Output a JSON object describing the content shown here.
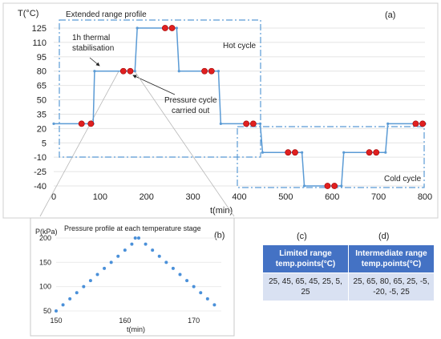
{
  "chart_data": [
    {
      "panel": "(a)",
      "type": "line",
      "title": "Extended range profile",
      "xlabel": "t(min)",
      "ylabel": "T(°C)",
      "xlim": [
        0,
        800
      ],
      "ylim": [
        -40,
        125
      ],
      "xticks": [
        0,
        100,
        200,
        300,
        400,
        500,
        600,
        700,
        800
      ],
      "yticks": [
        125,
        110,
        95,
        80,
        65,
        50,
        35,
        20,
        5,
        -10,
        -25,
        -40
      ],
      "series": [
        {
          "x": [
            0,
            85,
            88,
            175,
            180,
            265,
            270,
            355,
            360,
            445,
            450,
            535,
            540,
            620,
            625,
            715,
            720,
            800
          ],
          "y": [
            25,
            25,
            80,
            80,
            125,
            125,
            80,
            80,
            25,
            25,
            -5,
            -5,
            -40,
            -40,
            -5,
            -5,
            25,
            25
          ]
        }
      ],
      "markers": [
        {
          "x": 60,
          "y": 25
        },
        {
          "x": 80,
          "y": 25
        },
        {
          "x": 150,
          "y": 80
        },
        {
          "x": 165,
          "y": 80
        },
        {
          "x": 240,
          "y": 125
        },
        {
          "x": 255,
          "y": 125
        },
        {
          "x": 325,
          "y": 80
        },
        {
          "x": 340,
          "y": 80
        },
        {
          "x": 415,
          "y": 25
        },
        {
          "x": 430,
          "y": 25
        },
        {
          "x": 505,
          "y": -5
        },
        {
          "x": 520,
          "y": -5
        },
        {
          "x": 590,
          "y": -40
        },
        {
          "x": 605,
          "y": -40
        },
        {
          "x": 680,
          "y": -5
        },
        {
          "x": 695,
          "y": -5
        },
        {
          "x": 780,
          "y": 25
        },
        {
          "x": 795,
          "y": 25
        }
      ],
      "annotations": [
        "1h thermal stabilisation",
        "Pressure cycle carried out",
        "Hot cycle",
        "Cold cycle"
      ],
      "grid": true
    },
    {
      "panel": "(b)",
      "type": "scatter",
      "title": "Pressure profile at each temperature stage",
      "xlabel": "t(min)",
      "ylabel": "P(kPa)",
      "xlim": [
        150,
        174
      ],
      "ylim": [
        50,
        200
      ],
      "xticks": [
        150,
        160,
        170
      ],
      "yticks": [
        200,
        150,
        100,
        50
      ],
      "x": [
        150,
        151,
        152,
        153,
        154,
        155,
        156,
        157,
        158,
        159,
        160,
        161,
        161.5,
        162,
        163,
        164,
        165,
        166,
        167,
        168,
        169,
        170,
        171,
        172,
        173
      ],
      "y": [
        50,
        62.5,
        75,
        87.5,
        100,
        112.5,
        125,
        137.5,
        150,
        162.5,
        175,
        187.5,
        200,
        200,
        187.5,
        175,
        162.5,
        150,
        137.5,
        125,
        112.5,
        100,
        87.5,
        75,
        62.5
      ],
      "color": "#4a90d9"
    }
  ],
  "panel_labels": {
    "c": "(c)",
    "d": "(d)"
  },
  "table": {
    "headers": [
      "Limited range temp.points(°C)",
      "Intermediate range temp.points(°C)"
    ],
    "cells": [
      "25, 45, 65, 45, 25, 5, 25",
      "25, 65, 80, 65, 25, -5, -20, -5, 25"
    ]
  },
  "colors": {
    "line": "#5b9bd5",
    "marker": "#e02020",
    "box": "#5b9bd5",
    "table_header": "#4472c4",
    "table_cell": "#d9e1f2"
  }
}
